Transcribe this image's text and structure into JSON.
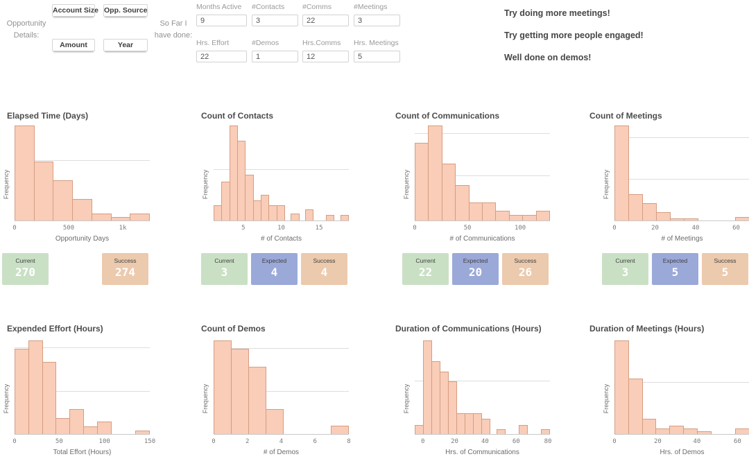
{
  "filters": {
    "section_label": "Opportunity Details:",
    "buttons": [
      "Account Size",
      "Opp. Source",
      "Amount",
      "Year"
    ]
  },
  "so_far": {
    "section_label": "So Far I have done:",
    "fields": [
      {
        "label": "Months Active",
        "value": "9"
      },
      {
        "label": "#Contacts",
        "value": "3"
      },
      {
        "label": "#Comms",
        "value": "22"
      },
      {
        "label": "#Meetings",
        "value": "3"
      },
      {
        "label": "Hrs. Effort",
        "value": "22"
      },
      {
        "label": "#Demos",
        "value": "1"
      },
      {
        "label": "Hrs.Comms",
        "value": "12"
      },
      {
        "label": "Hrs. Meetings",
        "value": "5"
      }
    ]
  },
  "advice": [
    "Try doing more meetings!",
    "Try getting more people engaged!",
    "Well done on demos!"
  ],
  "colors": {
    "bar_fill": "#f9cdb8",
    "bar_border": "#d59d81",
    "kpi_green": "#c9e0c4",
    "kpi_blue": "#9ba9d9",
    "kpi_tan": "#eccaad",
    "kpi_value_text": "#ffffff"
  },
  "chart_data": [
    {
      "type": "bar",
      "title": "Elapsed Time (Days)",
      "xlabel": "Opportunity Days",
      "ylabel": "Frequency",
      "bar_heights_pct": [
        100,
        62,
        42,
        23,
        7,
        4,
        7
      ],
      "gridlines_pct": [
        63
      ],
      "x_ticks": [
        {
          "label": "0",
          "pos": 0
        },
        {
          "label": "500",
          "pos": 40
        },
        {
          "label": "1k",
          "pos": 80
        }
      ],
      "kpis": [
        {
          "label": "Current",
          "value": "270",
          "color": "green",
          "slot": 0
        },
        {
          "label": "Success",
          "value": "274",
          "color": "tan",
          "slot": 2
        }
      ]
    },
    {
      "type": "bar",
      "title": "Count of Contacts",
      "xlabel": "# of Contacts",
      "ylabel": "Frequency",
      "bar_heights_pct": [
        16,
        41,
        100,
        84,
        48,
        21,
        27,
        16,
        16,
        0,
        7,
        0,
        12,
        0,
        0,
        6,
        0,
        6
      ],
      "gridlines_pct": [
        53
      ],
      "x_ticks": [
        {
          "label": "5",
          "pos": 22
        },
        {
          "label": "10",
          "pos": 50
        },
        {
          "label": "15",
          "pos": 78
        }
      ],
      "kpis": [
        {
          "label": "Current",
          "value": "3",
          "color": "green",
          "slot": 0
        },
        {
          "label": "Expected",
          "value": "4",
          "color": "blue",
          "slot": 1
        },
        {
          "label": "Success",
          "value": "4",
          "color": "tan",
          "slot": 2
        }
      ]
    },
    {
      "type": "bar",
      "title": "Count of Communications",
      "xlabel": "# of Communications",
      "ylabel": "Frequency",
      "bar_heights_pct": [
        82,
        100,
        60,
        37,
        19,
        19,
        10,
        6,
        6,
        10
      ],
      "gridlines_pct": [
        47,
        91
      ],
      "x_ticks": [
        {
          "label": "0",
          "pos": 0
        },
        {
          "label": "50",
          "pos": 39
        },
        {
          "label": "100",
          "pos": 78
        }
      ],
      "kpis": [
        {
          "label": "Current",
          "value": "22",
          "color": "green",
          "slot": 0
        },
        {
          "label": "Expected",
          "value": "20",
          "color": "blue",
          "slot": 1
        },
        {
          "label": "Success",
          "value": "26",
          "color": "tan",
          "slot": 2
        }
      ]
    },
    {
      "type": "bar",
      "title": "Count of Meetings",
      "xlabel": "# of Meetings",
      "ylabel": "Frequency",
      "bar_heights_pct": [
        100,
        28,
        18,
        9,
        2,
        2,
        0,
        0,
        0,
        4
      ],
      "gridlines_pct": [
        43,
        87
      ],
      "x_ticks": [
        {
          "label": "0",
          "pos": 0
        },
        {
          "label": "20",
          "pos": 30
        },
        {
          "label": "40",
          "pos": 60
        },
        {
          "label": "60",
          "pos": 90
        }
      ],
      "kpis": [
        {
          "label": "Current",
          "value": "3",
          "color": "green",
          "slot": 0
        },
        {
          "label": "Expected",
          "value": "5",
          "color": "blue",
          "slot": 1
        },
        {
          "label": "Success",
          "value": "5",
          "color": "tan",
          "slot": 2
        }
      ]
    },
    {
      "type": "bar",
      "title": "Expended Effort (Hours)",
      "xlabel": "Total Effort (Hours)",
      "ylabel": "Frequency",
      "bar_heights_pct": [
        91,
        100,
        77,
        17,
        27,
        8,
        13,
        0,
        0,
        4
      ],
      "gridlines_pct": [
        45,
        92
      ],
      "x_ticks": [
        {
          "label": "0",
          "pos": 0
        },
        {
          "label": "50",
          "pos": 33
        },
        {
          "label": "100",
          "pos": 66.5
        },
        {
          "label": "150",
          "pos": 100
        }
      ],
      "kpis": []
    },
    {
      "type": "bar",
      "title": "Count of Demos",
      "xlabel": "# of Demos",
      "ylabel": "Frequency",
      "bar_heights_pct": [
        100,
        91,
        72,
        27,
        0,
        0,
        0,
        9
      ],
      "gridlines_pct": [
        45,
        91
      ],
      "x_ticks": [
        {
          "label": "0",
          "pos": 0
        },
        {
          "label": "2",
          "pos": 25
        },
        {
          "label": "4",
          "pos": 50
        },
        {
          "label": "6",
          "pos": 75
        },
        {
          "label": "8",
          "pos": 100
        }
      ],
      "kpis": []
    },
    {
      "type": "bar",
      "title": "Duration of Communications (Hours)",
      "xlabel": "Hrs. of Communications",
      "ylabel": "Frequency",
      "bar_heights_pct": [
        10,
        100,
        78,
        67,
        56,
        22,
        22,
        22,
        16,
        0,
        5,
        0,
        0,
        10,
        0,
        0,
        5
      ],
      "gridlines_pct": [
        56
      ],
      "x_ticks": [
        {
          "label": "0",
          "pos": 6
        },
        {
          "label": "20",
          "pos": 29.5
        },
        {
          "label": "40",
          "pos": 52
        },
        {
          "label": "60",
          "pos": 75
        },
        {
          "label": "80",
          "pos": 98.5
        }
      ],
      "kpis": []
    },
    {
      "type": "bar",
      "title": "Duration of Meetings (Hours)",
      "xlabel": "Hrs. of Demos",
      "ylabel": "Frequency",
      "bar_heights_pct": [
        100,
        59,
        16,
        6,
        9,
        6,
        3,
        0,
        0,
        6
      ],
      "gridlines_pct": [
        55
      ],
      "x_ticks": [
        {
          "label": "0",
          "pos": 0
        },
        {
          "label": "20",
          "pos": 32
        },
        {
          "label": "40",
          "pos": 61
        },
        {
          "label": "60",
          "pos": 91
        }
      ],
      "kpis": []
    }
  ]
}
